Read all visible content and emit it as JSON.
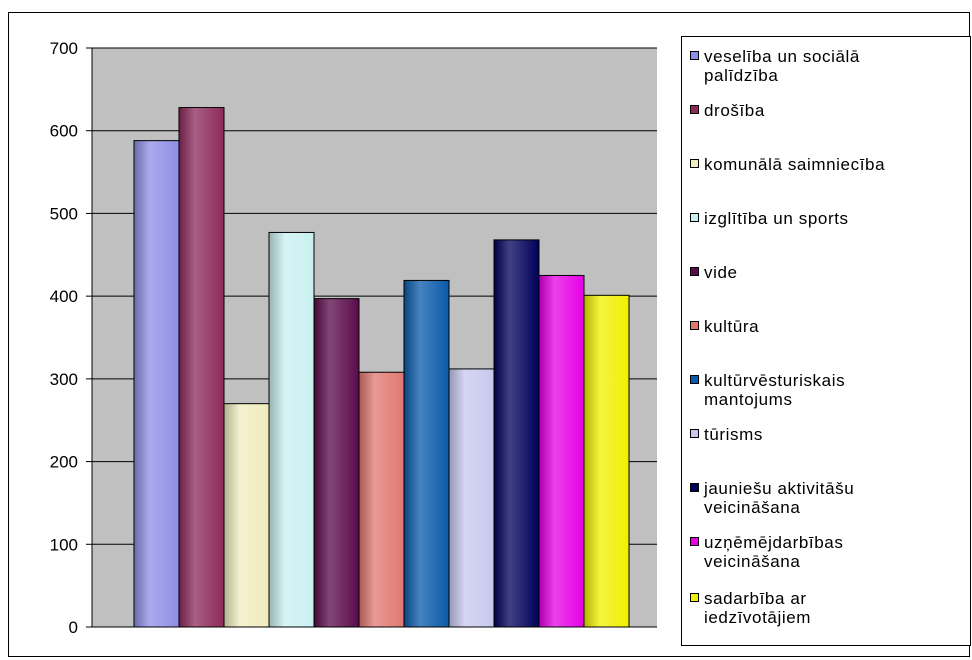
{
  "chart_data": {
    "type": "bar",
    "ylim": [
      0,
      700
    ],
    "yticks": [
      "0",
      "100",
      "200",
      "300",
      "400",
      "500",
      "600",
      "700"
    ],
    "grid": true,
    "legend_position": "right",
    "series": [
      {
        "name": "veselība un sociālā\npalīdzība",
        "value": 588,
        "color": "#8e8ee6"
      },
      {
        "name": "drošība",
        "value": 628,
        "color": "#8c2a5a"
      },
      {
        "name": "komunālā saimniecība",
        "value": 270,
        "color": "#f0ecbe"
      },
      {
        "name": "izglītība un sports",
        "value": 477,
        "color": "#c8f0f0"
      },
      {
        "name": "vide",
        "value": 397,
        "color": "#5a0a4a"
      },
      {
        "name": "kultūra",
        "value": 308,
        "color": "#e07870"
      },
      {
        "name": "kultūrvēsturiskais\nmantojums",
        "value": 419,
        "color": "#0a5aaa"
      },
      {
        "name": "tūrisms",
        "value": 312,
        "color": "#c8c8ee"
      },
      {
        "name": "jauniešu aktivitāšu\nveicināšana",
        "value": 468,
        "color": "#00005a"
      },
      {
        "name": "uzņēmējdarbības\nveicināšana",
        "value": 425,
        "color": "#e600e6"
      },
      {
        "name": "sadarbība ar\niedzīvotājiem",
        "value": 401,
        "color": "#f0f000"
      }
    ],
    "colors": {
      "plot_background": "#c0c0c0",
      "gridline": "#000000"
    }
  }
}
